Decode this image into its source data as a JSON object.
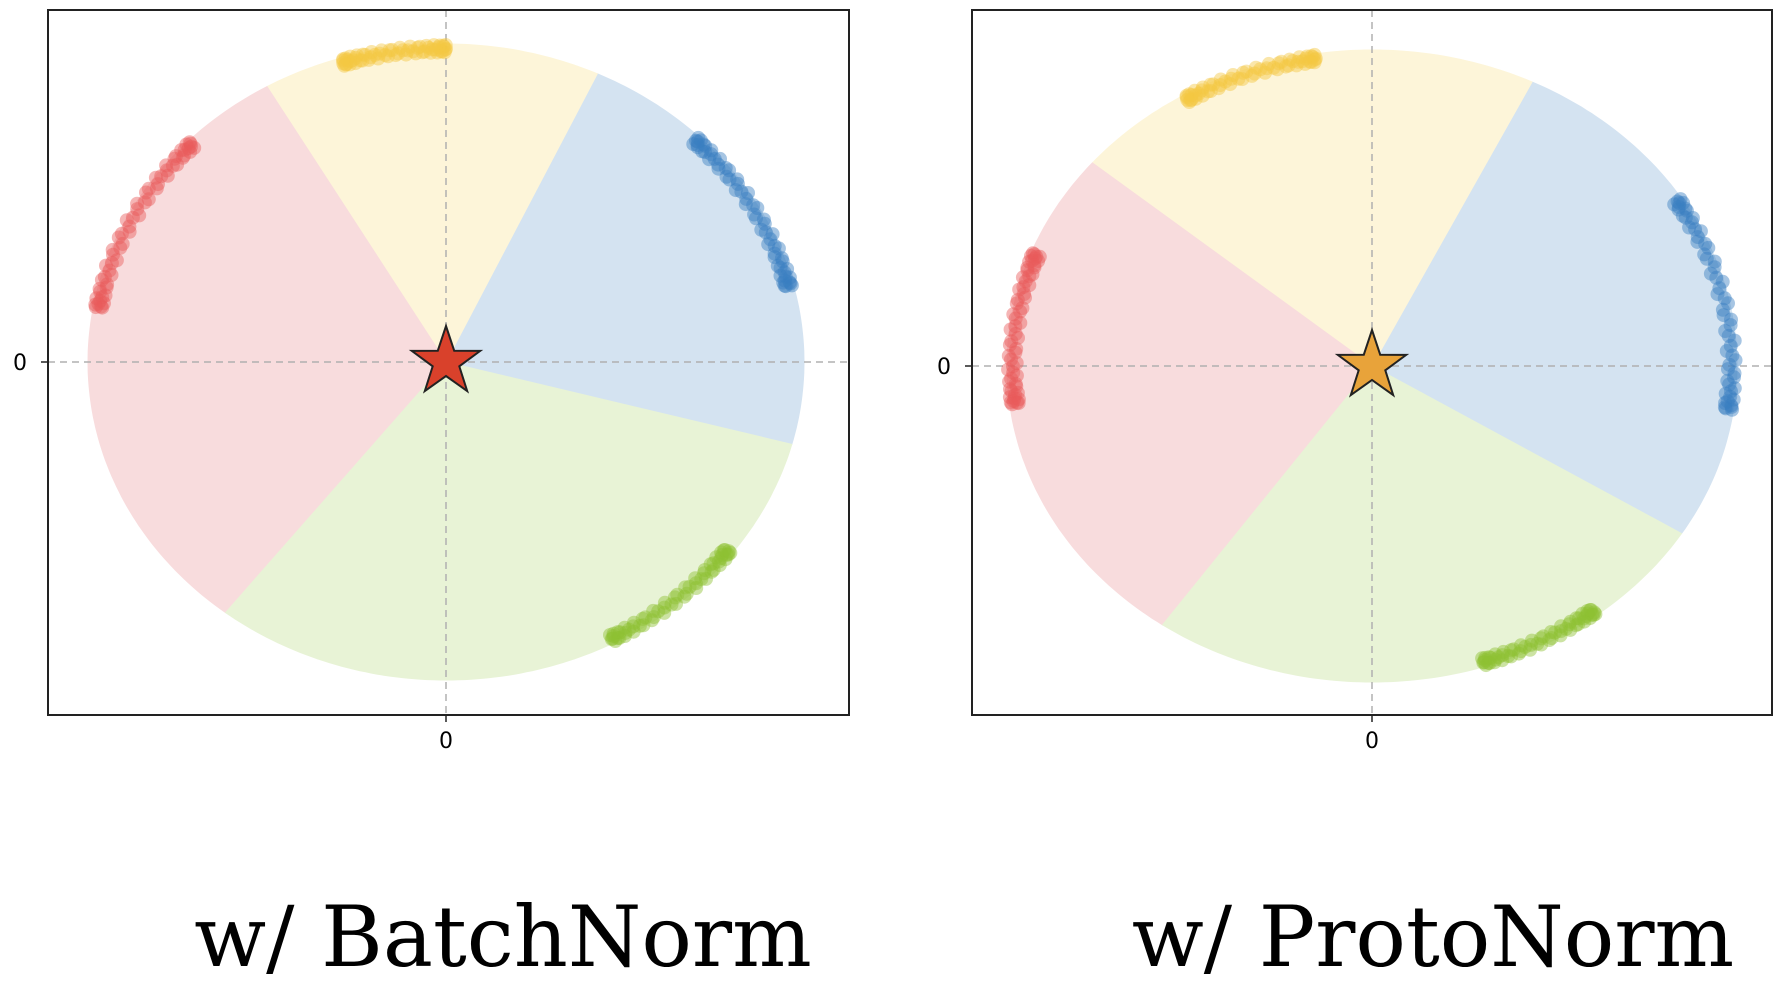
{
  "chart_data": [
    {
      "type": "scatter",
      "title": "w/ BatchNorm",
      "xtick_labels": [
        "0"
      ],
      "ytick_labels": [
        "0"
      ],
      "xlim": [
        -1.1,
        1.1
      ],
      "ylim": [
        -1.1,
        1.1
      ],
      "grid": "dashed lines at x=0 and y=0",
      "center_marker": {
        "shape": "star",
        "color": "#d9412b",
        "x": 0,
        "y": 0
      },
      "wedges": [
        {
          "class": "blue",
          "start_deg": -15,
          "end_deg": 65,
          "color": "#d4e3f1"
        },
        {
          "class": "yellow",
          "start_deg": 65,
          "end_deg": 120,
          "color": "#fdf5d9"
        },
        {
          "class": "red",
          "start_deg": 120,
          "end_deg": 232,
          "color": "#f8dcdd"
        },
        {
          "class": "green",
          "start_deg": 232,
          "end_deg": 345,
          "color": "#e8f3d6"
        }
      ],
      "point_clusters": [
        {
          "class": "yellow",
          "from_deg": 90,
          "to_deg": 107,
          "color": "#f5c842"
        },
        {
          "class": "red",
          "from_deg": 136,
          "to_deg": 170,
          "color": "#e85a5a"
        },
        {
          "class": "blue",
          "from_deg": 14,
          "to_deg": 45,
          "color": "#3a7ec2"
        },
        {
          "class": "green",
          "from_deg": -62,
          "to_deg": -37,
          "color": "#8dc234"
        }
      ]
    },
    {
      "type": "scatter",
      "title": "w/ ProtoNorm",
      "xtick_labels": [
        "0"
      ],
      "ytick_labels": [
        "0"
      ],
      "xlim": [
        -1.1,
        1.1
      ],
      "ylim": [
        -1.1,
        1.1
      ],
      "grid": "dashed lines at x=0 and y=0",
      "center_marker": {
        "shape": "star",
        "color": "#e8a33a",
        "x": 0,
        "y": 0
      },
      "wedges": [
        {
          "class": "blue",
          "start_deg": -32,
          "end_deg": 64,
          "color": "#d4e3f1"
        },
        {
          "class": "yellow",
          "start_deg": 64,
          "end_deg": 140,
          "color": "#fdf5d9"
        },
        {
          "class": "red",
          "start_deg": 140,
          "end_deg": 235,
          "color": "#f8dcdd"
        },
        {
          "class": "green",
          "start_deg": 235,
          "end_deg": 328,
          "color": "#e8f3d6"
        }
      ],
      "point_clusters": [
        {
          "class": "yellow",
          "from_deg": 99,
          "to_deg": 121,
          "color": "#f5c842"
        },
        {
          "class": "red",
          "from_deg": 159,
          "to_deg": 187,
          "color": "#e85a5a"
        },
        {
          "class": "blue",
          "from_deg": -8,
          "to_deg": 32,
          "color": "#3a7ec2"
        },
        {
          "class": "green",
          "from_deg": -72,
          "to_deg": -52,
          "color": "#8dc234"
        }
      ]
    }
  ]
}
